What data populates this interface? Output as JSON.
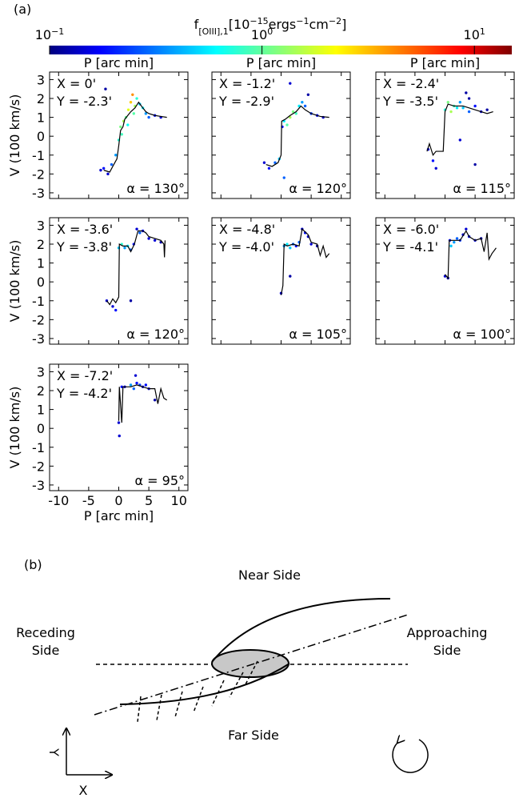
{
  "panel_label_a": "(a)",
  "colorbar": {
    "label": [
      {
        "text": "f"
      },
      {
        "text": "[OIII],1",
        "shift": "sub"
      },
      {
        "text": "[10"
      },
      {
        "text": "−15",
        "shift": "super"
      },
      {
        "text": "ergs"
      },
      {
        "text": "−1",
        "shift": "super"
      },
      {
        "text": "cm"
      },
      {
        "text": "−2",
        "shift": "super"
      },
      {
        "text": "]"
      }
    ],
    "scale": "log",
    "colormap": "jet",
    "lim": [
      0.1,
      15
    ],
    "ticks": [
      {
        "value": 0.1,
        "label": "10",
        "exponent": "−1"
      },
      {
        "value": 1,
        "label": "10",
        "exponent": "0"
      },
      {
        "value": 10,
        "label": "10",
        "exponent": "1"
      }
    ]
  },
  "chart_data": [
    {
      "type": "scatter",
      "position_x": "X = 0'",
      "position_y": "Y = -2.3'",
      "angle": "α = 130°",
      "xlabel": "P [arc min]",
      "xlabel_side": "top",
      "ylabel": "V (100 km/s)",
      "show_xticklabels": false,
      "show_yticklabels": true,
      "xlim": [
        -11.5,
        11.5
      ],
      "ylim": [
        -3.3,
        3.4
      ],
      "xticks": [
        -10,
        -5,
        0,
        5,
        10
      ],
      "yticks": [
        -3,
        -2,
        -1,
        0,
        1,
        2,
        3
      ],
      "line": {
        "color": "#000000",
        "x": [
          -2.5,
          -1.5,
          -1,
          -0.3,
          0,
          0.3,
          0.7,
          1,
          1.5,
          2,
          2.7,
          3.3,
          4,
          4.5,
          5,
          6,
          7,
          8
        ],
        "y": [
          -1.8,
          -1.9,
          -1.6,
          -1.2,
          -0.5,
          0.3,
          0.5,
          0.9,
          1.1,
          1.3,
          1.5,
          1.8,
          1.5,
          1.3,
          1.2,
          1.1,
          1.05,
          1.0
        ]
      },
      "points": {
        "x": [
          -3,
          -2.5,
          -1.8,
          -1.2,
          -0.5,
          0,
          0.3,
          0.8,
          1.2,
          1.6,
          2,
          2.3,
          2.7,
          3,
          3.5,
          4,
          4.5,
          5,
          6,
          7,
          1.5,
          2.5,
          -2.2,
          0.5
        ],
        "y": [
          -1.8,
          -1.7,
          -2.0,
          -1.5,
          -1.0,
          -0.2,
          0.5,
          0.8,
          1.0,
          1.4,
          1.8,
          2.2,
          1.6,
          2.0,
          1.7,
          1.5,
          1.2,
          1.0,
          1.1,
          1.0,
          0.6,
          1.2,
          2.5,
          0.1
        ],
        "flux": [
          0.15,
          0.2,
          0.15,
          0.3,
          0.4,
          0.8,
          1.2,
          1.5,
          1.1,
          2,
          3,
          4,
          1.5,
          0.8,
          0.5,
          0.6,
          0.4,
          0.3,
          0.2,
          0.15,
          0.7,
          1.0,
          0.12,
          0.9
        ]
      }
    },
    {
      "type": "scatter",
      "position_x": "X = -1.2'",
      "position_y": "Y = -2.9'",
      "angle": "α = 120°",
      "xlabel": "P [arc min]",
      "xlabel_side": "top",
      "show_xticklabels": false,
      "show_yticklabels": false,
      "xlim": [
        -11.5,
        11.5
      ],
      "ylim": [
        -3.3,
        3.4
      ],
      "xticks": [
        -10,
        -5,
        0,
        5,
        10
      ],
      "yticks": [
        -3,
        -2,
        -1,
        0,
        1,
        2,
        3
      ],
      "line": {
        "color": "#000000",
        "x": [
          -2.5,
          -1.5,
          -0.5,
          0,
          0.1,
          0.7,
          1.5,
          2.5,
          3.3,
          4,
          5,
          6.5,
          8
        ],
        "y": [
          -1.5,
          -1.6,
          -1.4,
          -1.0,
          0.8,
          0.9,
          1.1,
          1.3,
          1.6,
          1.4,
          1.2,
          1.05,
          1.0
        ]
      },
      "points": {
        "x": [
          -2.8,
          -2,
          -1,
          -0.3,
          0.2,
          0.5,
          1,
          1.5,
          2,
          2.5,
          3,
          3.5,
          4,
          5,
          6,
          7,
          1.5,
          4.5,
          0.5
        ],
        "y": [
          -1.4,
          -1.7,
          -1.4,
          -1.2,
          0.5,
          0.8,
          0.6,
          1.0,
          1.3,
          1.2,
          1.6,
          1.8,
          1.6,
          1.2,
          1.1,
          1.0,
          2.8,
          2.2,
          -2.2
        ],
        "flux": [
          0.15,
          0.2,
          0.3,
          0.5,
          0.2,
          0.6,
          1.0,
          1.5,
          1.2,
          0.9,
          0.6,
          0.4,
          0.3,
          0.25,
          0.2,
          0.15,
          0.15,
          0.12,
          0.3
        ]
      }
    },
    {
      "type": "scatter",
      "position_x": "X = -2.4'",
      "position_y": "Y = -3.5'",
      "angle": "α = 115°",
      "xlabel": "P [arc min]",
      "xlabel_side": "top",
      "show_xticklabels": false,
      "show_yticklabels": false,
      "xlim": [
        -11.5,
        11.5
      ],
      "ylim": [
        -3.3,
        3.4
      ],
      "xticks": [
        -10,
        -5,
        0,
        5,
        10
      ],
      "yticks": [
        -3,
        -2,
        -1,
        0,
        1,
        2,
        3
      ],
      "line": {
        "color": "#000000",
        "x": [
          -3,
          -2.6,
          -2,
          -1.5,
          -0.3,
          0,
          0.5,
          1.5,
          3,
          4,
          5,
          6,
          7,
          8
        ],
        "y": [
          -0.8,
          -0.4,
          -1.0,
          -0.8,
          -0.8,
          1.3,
          1.7,
          1.6,
          1.6,
          1.5,
          1.4,
          1.3,
          1.2,
          1.3
        ]
      },
      "points": {
        "x": [
          -2.8,
          -2,
          -1.5,
          0,
          0.5,
          1,
          1.5,
          2,
          2.5,
          3,
          4,
          5,
          6,
          7,
          3.5,
          2.5,
          5,
          4
        ],
        "y": [
          -0.7,
          -1.3,
          -1.7,
          1.4,
          1.8,
          1.3,
          1.6,
          1.5,
          1.8,
          1.5,
          1.3,
          1.6,
          1.3,
          1.4,
          2.3,
          -0.2,
          -1.5,
          2.0
        ],
        "flux": [
          0.15,
          0.2,
          0.15,
          0.8,
          1.2,
          1.5,
          0.9,
          0.6,
          0.4,
          0.5,
          0.3,
          0.2,
          0.15,
          0.12,
          0.12,
          0.15,
          0.12,
          0.12
        ]
      }
    },
    {
      "type": "scatter",
      "position_x": "X = -3.6'",
      "position_y": "Y = -3.8'",
      "angle": "α = 120°",
      "ylabel": "V (100 km/s)",
      "show_xticklabels": false,
      "show_yticklabels": true,
      "xlim": [
        -11.5,
        11.5
      ],
      "ylim": [
        -3.3,
        3.4
      ],
      "xticks": [
        -10,
        -5,
        0,
        5,
        10
      ],
      "yticks": [
        -3,
        -2,
        -1,
        0,
        1,
        2,
        3
      ],
      "line": {
        "color": "#000000",
        "x": [
          -2,
          -1.5,
          -1,
          -0.5,
          0,
          0.1,
          0.7,
          1.5,
          2,
          2.6,
          3.2,
          4,
          4.5,
          5,
          6,
          7,
          7.5,
          7.6,
          7.7
        ],
        "y": [
          -1.0,
          -1.2,
          -0.9,
          -1.1,
          -0.8,
          2.0,
          1.9,
          1.9,
          1.6,
          2.0,
          2.7,
          2.7,
          2.6,
          2.4,
          2.3,
          2.2,
          2.0,
          1.3,
          2.2
        ]
      },
      "points": {
        "x": [
          -2,
          -1,
          -0.5,
          0,
          0.5,
          1,
          1.5,
          2,
          2.5,
          3,
          3.5,
          4,
          5,
          6,
          7,
          2
        ],
        "y": [
          -1.0,
          -1.3,
          -1.5,
          1.8,
          2.0,
          1.8,
          1.9,
          1.7,
          2.0,
          2.8,
          2.6,
          2.7,
          2.3,
          2.2,
          2.1,
          -1.0
        ],
        "flux": [
          0.15,
          0.15,
          0.2,
          0.5,
          0.8,
          0.4,
          0.6,
          0.3,
          0.2,
          0.15,
          0.3,
          0.2,
          0.15,
          0.15,
          0.12,
          0.12
        ]
      }
    },
    {
      "type": "scatter",
      "position_x": "X = -4.8'",
      "position_y": "Y = -4.0'",
      "angle": "α = 105°",
      "show_xticklabels": false,
      "show_yticklabels": false,
      "xlim": [
        -11.5,
        11.5
      ],
      "ylim": [
        -3.3,
        3.4
      ],
      "xticks": [
        -10,
        -5,
        0,
        5,
        10
      ],
      "yticks": [
        -3,
        -2,
        -1,
        0,
        1,
        2,
        3
      ],
      "line": {
        "color": "#000000",
        "x": [
          0,
          0.3,
          0.5,
          1,
          2,
          3,
          3.5,
          4.5,
          5,
          6,
          6.5,
          7,
          7.5,
          8
        ],
        "y": [
          -0.7,
          -0.2,
          2.0,
          1.9,
          2.0,
          1.9,
          2.8,
          2.5,
          2.1,
          2.0,
          1.4,
          1.9,
          1.3,
          1.5
        ]
      },
      "points": {
        "x": [
          0,
          0.5,
          1,
          1.5,
          2,
          2.5,
          3,
          3.5,
          4,
          4.5,
          5,
          6,
          1.5
        ],
        "y": [
          -0.6,
          1.9,
          2.0,
          1.8,
          2.0,
          1.9,
          2.1,
          2.8,
          2.6,
          2.4,
          2.0,
          1.9,
          0.3
        ],
        "flux": [
          0.15,
          0.4,
          0.6,
          0.5,
          0.3,
          0.2,
          0.3,
          0.15,
          0.2,
          0.15,
          0.15,
          0.12,
          0.12
        ]
      }
    },
    {
      "type": "scatter",
      "position_x": "X = -6.0'",
      "position_y": "Y = -4.1'",
      "angle": "α = 100°",
      "show_xticklabels": false,
      "show_yticklabels": false,
      "xlim": [
        -11.5,
        11.5
      ],
      "ylim": [
        -3.3,
        3.4
      ],
      "xticks": [
        -10,
        -5,
        0,
        5,
        10
      ],
      "yticks": [
        -3,
        -2,
        -1,
        0,
        1,
        2,
        3
      ],
      "line": {
        "color": "#000000",
        "x": [
          0,
          0.5,
          0.7,
          1.5,
          2.5,
          3.5,
          4,
          5,
          6,
          6.5,
          7,
          7.3,
          7.8,
          8.5
        ],
        "y": [
          0.4,
          0.2,
          2.2,
          2.2,
          2.2,
          2.7,
          2.4,
          2.2,
          2.3,
          1.6,
          2.6,
          1.2,
          1.5,
          1.8
        ]
      },
      "points": {
        "x": [
          0,
          0.5,
          0.8,
          1.5,
          2,
          2.5,
          3,
          3.5,
          4,
          5,
          6,
          1
        ],
        "y": [
          0.3,
          0.2,
          2.2,
          2.1,
          2.3,
          2.2,
          2.5,
          2.8,
          2.4,
          2.2,
          2.3,
          1.9
        ],
        "flux": [
          0.15,
          0.12,
          0.2,
          0.4,
          0.3,
          0.25,
          0.15,
          0.15,
          0.2,
          0.15,
          0.12,
          0.5
        ]
      }
    },
    {
      "type": "scatter",
      "position_x": "X = -7.2'",
      "position_y": "Y = -4.2'",
      "angle": "α = 95°",
      "xlabel": "P [arc min]",
      "xlabel_side": "bottom",
      "ylabel": "V (100 km/s)",
      "show_xticklabels": true,
      "show_yticklabels": true,
      "xlim": [
        -11.5,
        11.5
      ],
      "ylim": [
        -3.3,
        3.4
      ],
      "xticks": [
        -10,
        -5,
        0,
        5,
        10
      ],
      "yticks": [
        -3,
        -2,
        -1,
        0,
        1,
        2,
        3
      ],
      "line": {
        "color": "#000000",
        "x": [
          0,
          0.1,
          0.5,
          0.7,
          2,
          3,
          4,
          5,
          6,
          6.5,
          7,
          7.5,
          8
        ],
        "y": [
          0.4,
          2.2,
          0.3,
          2.2,
          2.2,
          2.3,
          2.2,
          2.1,
          2.1,
          1.3,
          2.1,
          1.6,
          1.5
        ]
      },
      "points": {
        "x": [
          0,
          0.1,
          0.5,
          1,
          2,
          2.5,
          3,
          3.5,
          4,
          4.5,
          5,
          6,
          2.8
        ],
        "y": [
          0.3,
          -0.4,
          2.2,
          2.2,
          2.3,
          2.1,
          2.4,
          2.3,
          2.2,
          2.3,
          2.1,
          1.5,
          2.8
        ],
        "flux": [
          0.15,
          0.15,
          0.2,
          0.15,
          0.4,
          0.3,
          0.2,
          0.25,
          0.15,
          0.2,
          0.15,
          0.12,
          0.15
        ]
      }
    }
  ],
  "diagram": {
    "label": "(b)",
    "near": "Near Side",
    "far": "Far Side",
    "receding": [
      "Receding",
      "Side"
    ],
    "approaching": [
      "Approaching",
      "Side"
    ],
    "axis_y": "Y",
    "axis_x": "X"
  }
}
